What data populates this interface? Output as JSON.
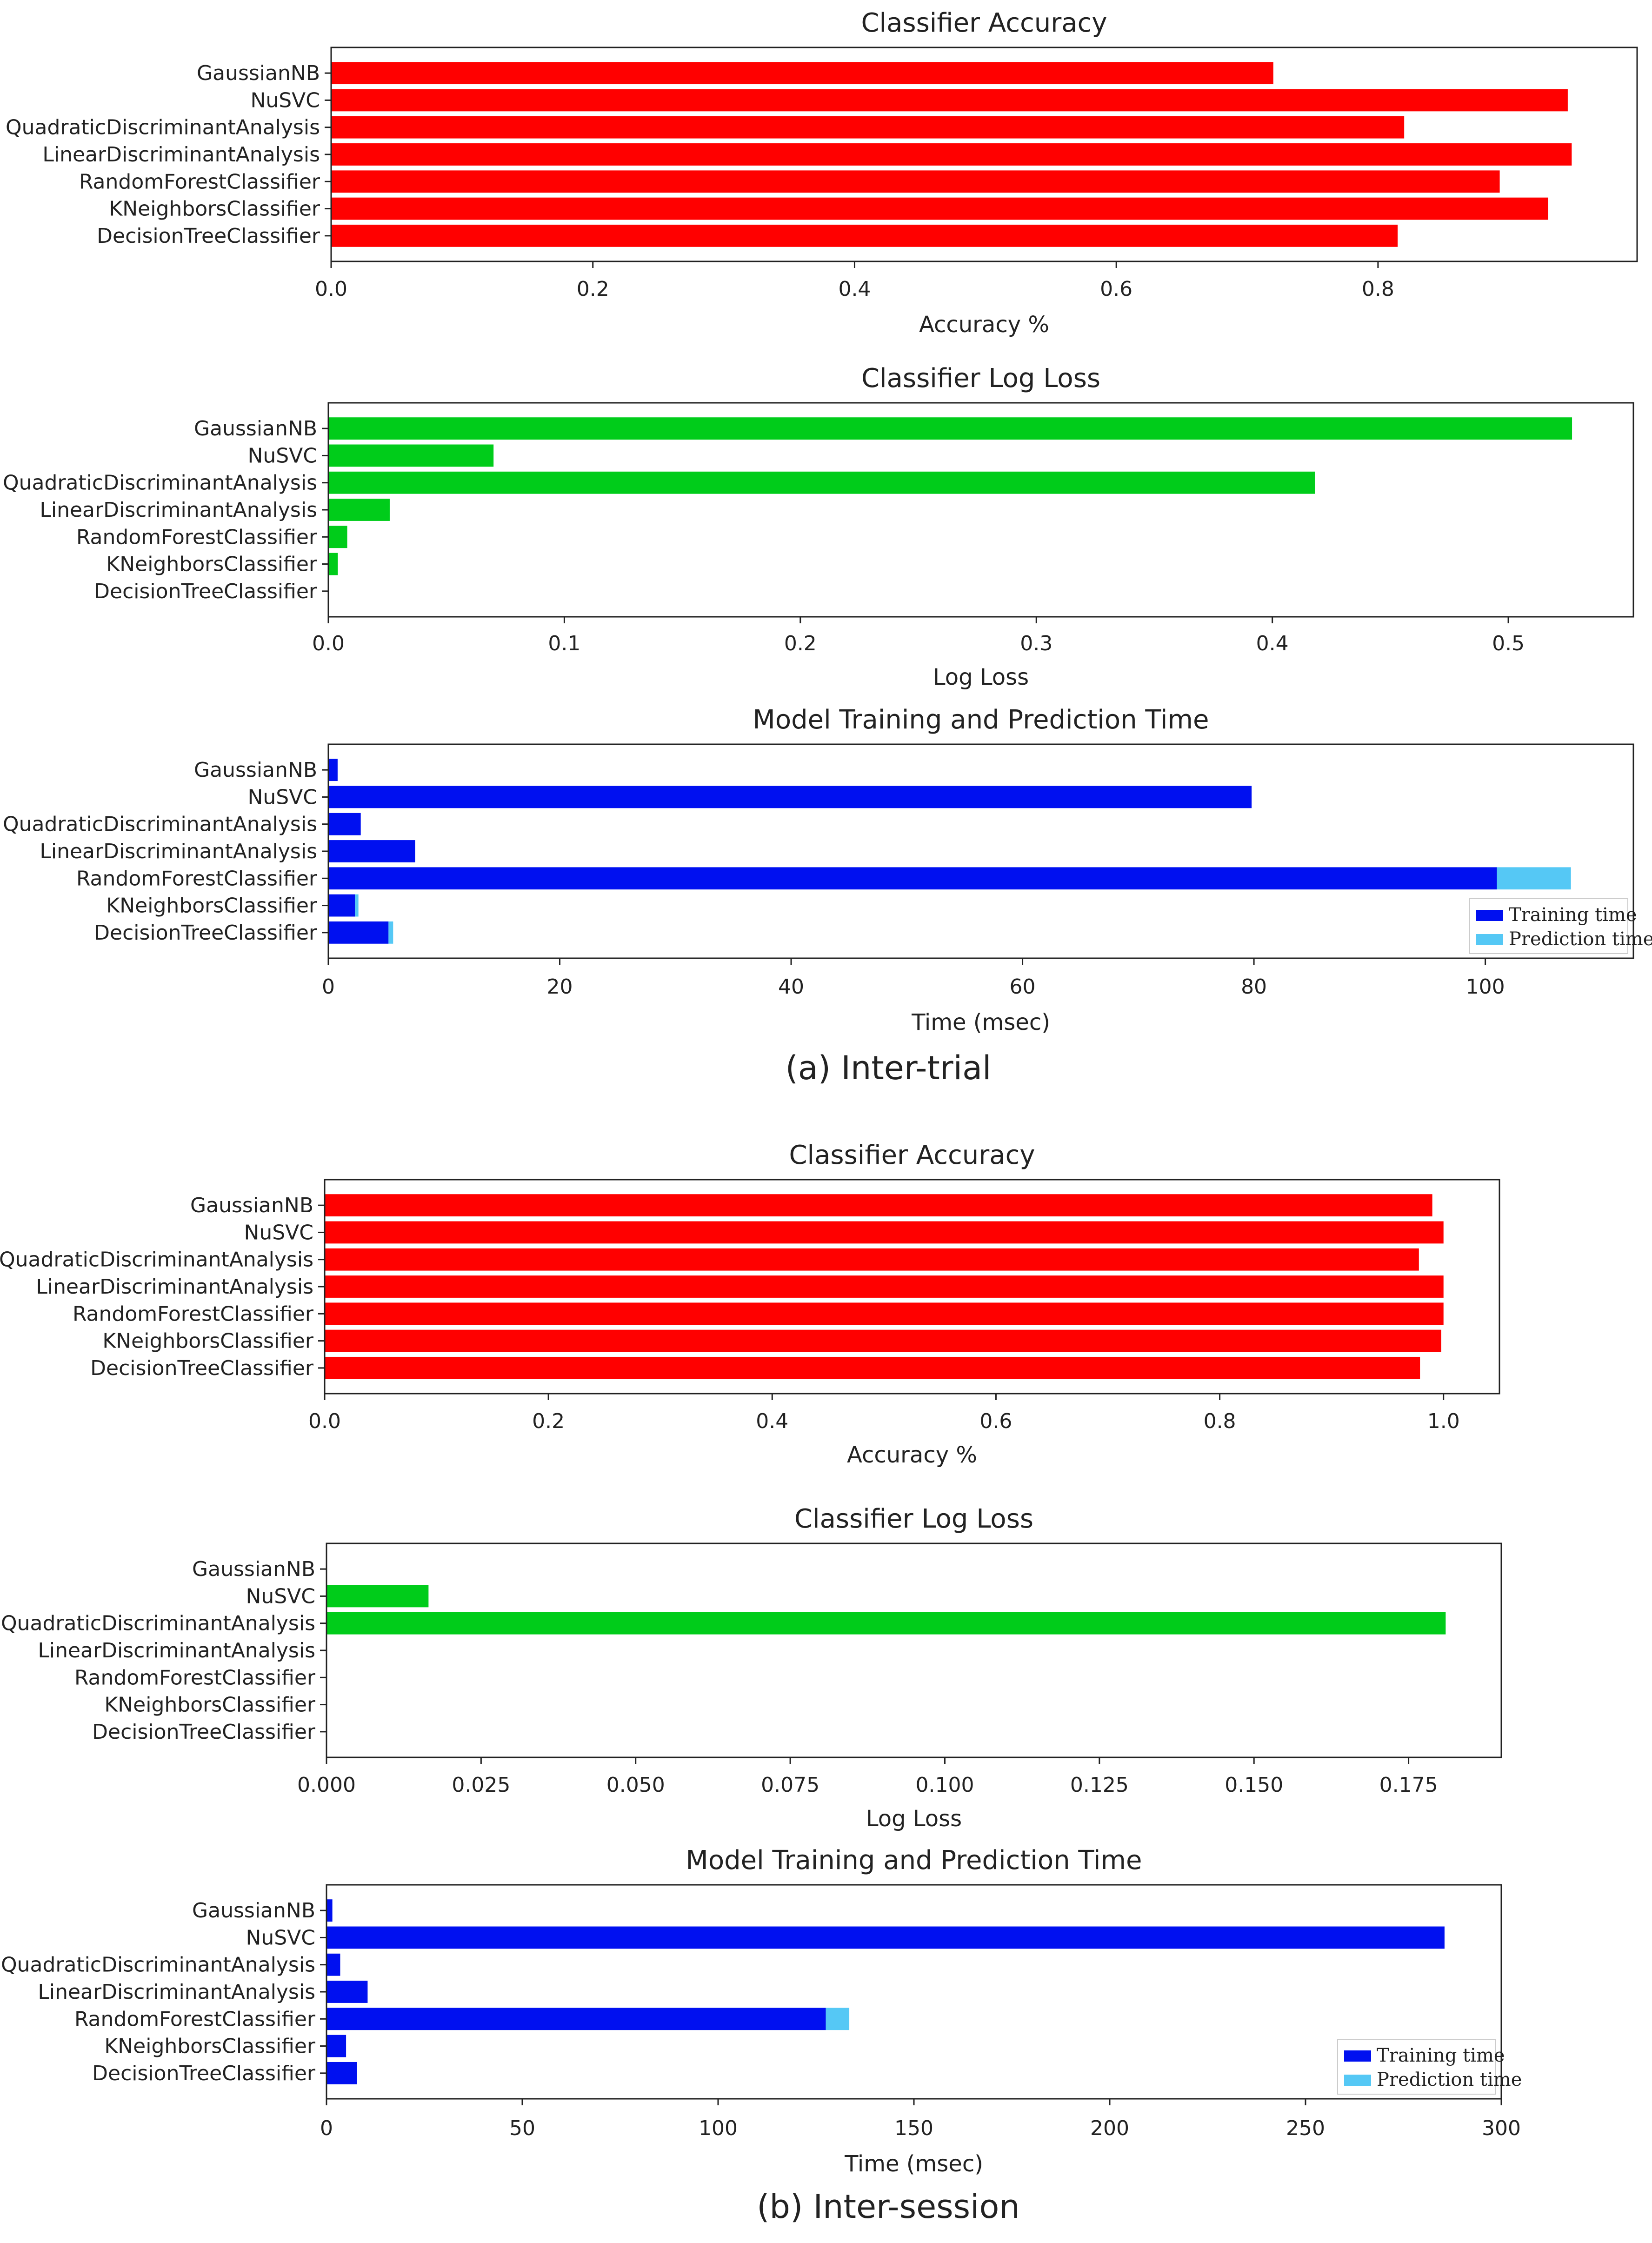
{
  "figure": {
    "caption_a": "(a) Inter-trial",
    "caption_b": "(b) Inter-session"
  },
  "chart_data": [
    {
      "id": "a-acc",
      "type": "bar",
      "orientation": "horizontal",
      "title": "Classifier Accuracy",
      "xlabel": "Accuracy %",
      "categories": [
        "GaussianNB",
        "NuSVC",
        "QuadraticDiscriminantAnalysis",
        "LinearDiscriminantAnalysis",
        "RandomForestClassifier",
        "KNeighborsClassifier",
        "DecisionTreeClassifier"
      ],
      "values": [
        0.72,
        0.945,
        0.82,
        0.948,
        0.893,
        0.93,
        0.815
      ],
      "xlim": [
        0,
        0.998
      ],
      "xticks": [
        0,
        0.2,
        0.4,
        0.6,
        0.8
      ],
      "xtick_labels": [
        "0.0",
        "0.2",
        "0.4",
        "0.6",
        "0.8"
      ],
      "color": "#ff0000"
    },
    {
      "id": "a-loss",
      "type": "bar",
      "orientation": "horizontal",
      "title": "Classifier Log Loss",
      "xlabel": "Log Loss",
      "categories": [
        "GaussianNB",
        "NuSVC",
        "QuadraticDiscriminantAnalysis",
        "LinearDiscriminantAnalysis",
        "RandomForestClassifier",
        "KNeighborsClassifier",
        "DecisionTreeClassifier"
      ],
      "values": [
        0.527,
        0.07,
        0.418,
        0.026,
        0.008,
        0.004,
        0.0
      ],
      "xlim": [
        0,
        0.553
      ],
      "xticks": [
        0,
        0.1,
        0.2,
        0.3,
        0.4,
        0.5
      ],
      "xtick_labels": [
        "0.0",
        "0.1",
        "0.2",
        "0.3",
        "0.4",
        "0.5"
      ],
      "color": "#00cc1a"
    },
    {
      "id": "a-time",
      "type": "stacked-bar",
      "orientation": "horizontal",
      "title": "Model Training and Prediction Time",
      "xlabel": "Time (msec)",
      "categories": [
        "GaussianNB",
        "NuSVC",
        "QuadraticDiscriminantAnalysis",
        "LinearDiscriminantAnalysis",
        "RandomForestClassifier",
        "KNeighborsClassifier",
        "DecisionTreeClassifier"
      ],
      "series": [
        {
          "name": "Training time",
          "color": "#0010f0",
          "values": [
            0.8,
            79.8,
            2.8,
            7.5,
            101.0,
            2.3,
            5.2
          ]
        },
        {
          "name": "Prediction time",
          "color": "#55c8f5",
          "values": [
            0.0,
            0.0,
            0.0,
            0.0,
            6.4,
            0.3,
            0.4
          ]
        }
      ],
      "xlim": [
        0,
        112.8
      ],
      "xticks": [
        0,
        20,
        40,
        60,
        80,
        100
      ],
      "xtick_labels": [
        "0",
        "20",
        "40",
        "60",
        "80",
        "100"
      ],
      "legend": "bottom-right"
    },
    {
      "id": "b-acc",
      "type": "bar",
      "orientation": "horizontal",
      "title": "Classifier Accuracy",
      "xlabel": "Accuracy %",
      "categories": [
        "GaussianNB",
        "NuSVC",
        "QuadraticDiscriminantAnalysis",
        "LinearDiscriminantAnalysis",
        "RandomForestClassifier",
        "KNeighborsClassifier",
        "DecisionTreeClassifier"
      ],
      "values": [
        0.99,
        1.0,
        0.978,
        1.0,
        1.0,
        0.998,
        0.979
      ],
      "xlim": [
        0,
        1.05
      ],
      "xticks": [
        0,
        0.2,
        0.4,
        0.6,
        0.8,
        1.0
      ],
      "xtick_labels": [
        "0.0",
        "0.2",
        "0.4",
        "0.6",
        "0.8",
        "1.0"
      ],
      "color": "#ff0000"
    },
    {
      "id": "b-loss",
      "type": "bar",
      "orientation": "horizontal",
      "title": "Classifier Log Loss",
      "xlabel": "Log Loss",
      "categories": [
        "GaussianNB",
        "NuSVC",
        "QuadraticDiscriminantAnalysis",
        "LinearDiscriminantAnalysis",
        "RandomForestClassifier",
        "KNeighborsClassifier",
        "DecisionTreeClassifier"
      ],
      "values": [
        0.0,
        0.0165,
        0.181,
        0.0,
        0.0,
        0.0,
        0.0
      ],
      "xlim": [
        0,
        0.19
      ],
      "xticks": [
        0,
        0.025,
        0.05,
        0.075,
        0.1,
        0.125,
        0.15,
        0.175
      ],
      "xtick_labels": [
        "0.000",
        "0.025",
        "0.050",
        "0.075",
        "0.100",
        "0.125",
        "0.150",
        "0.175"
      ],
      "color": "#00cc1a"
    },
    {
      "id": "b-time",
      "type": "stacked-bar",
      "orientation": "horizontal",
      "title": "Model Training and Prediction Time",
      "xlabel": "Time (msec)",
      "categories": [
        "GaussianNB",
        "NuSVC",
        "QuadraticDiscriminantAnalysis",
        "LinearDiscriminantAnalysis",
        "RandomForestClassifier",
        "KNeighborsClassifier",
        "DecisionTreeClassifier"
      ],
      "series": [
        {
          "name": "Training time",
          "color": "#0010f0",
          "values": [
            1.5,
            285.5,
            3.5,
            10.5,
            127.5,
            5.0,
            7.8
          ]
        },
        {
          "name": "Prediction time",
          "color": "#55c8f5",
          "values": [
            0.0,
            0.0,
            0.0,
            0.0,
            6.0,
            0.0,
            0.0
          ]
        }
      ],
      "xlim": [
        0,
        300
      ],
      "xticks": [
        0,
        50,
        100,
        150,
        200,
        250,
        300
      ],
      "xtick_labels": [
        "0",
        "50",
        "100",
        "150",
        "200",
        "250",
        "300"
      ],
      "legend": "bottom-right"
    }
  ]
}
